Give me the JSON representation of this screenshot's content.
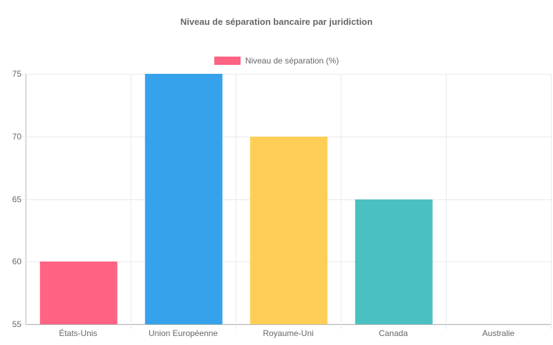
{
  "chart_data": {
    "type": "bar",
    "title": "Niveau de séparation bancaire par juridiction",
    "legend": {
      "label": "Niveau de séparation (%)",
      "color": "#FF6384",
      "position": "top"
    },
    "categories": [
      "États-Unis",
      "Union Européenne",
      "Royaume-Uni",
      "Canada",
      "Australie"
    ],
    "series": [
      {
        "name": "Niveau de séparation (%)",
        "values": [
          60,
          75,
          70,
          65,
          55
        ]
      }
    ],
    "bar_colors": [
      "#FF6384",
      "#36A2EB",
      "#FFCE56",
      "#4BC0C0",
      null
    ],
    "xlabel": "",
    "ylabel": "",
    "ylim": [
      55,
      75
    ],
    "yticks": [
      55,
      60,
      65,
      70,
      75
    ],
    "grid": true,
    "colors": {
      "text": "#666666",
      "gridline": "#e9e9e9",
      "axis": "#b7b7b7",
      "background": "#ffffff"
    }
  }
}
